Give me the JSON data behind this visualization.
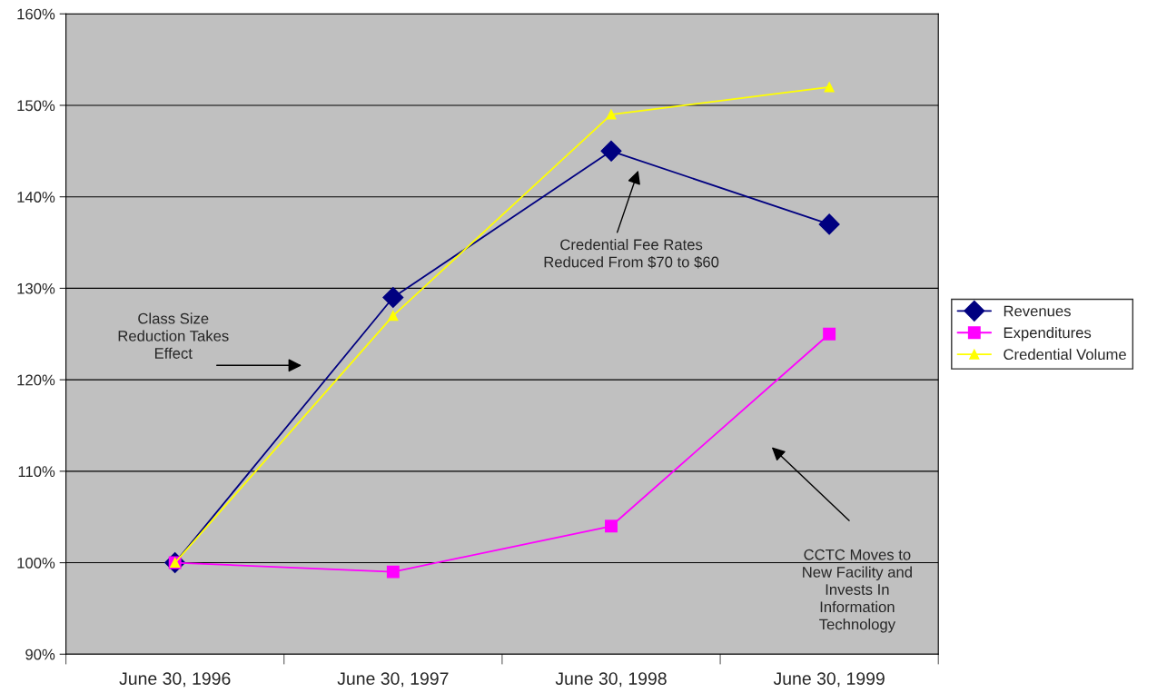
{
  "chart_data": {
    "type": "line",
    "categories": [
      "June 30, 1996",
      "June 30, 1997",
      "June 30, 1998",
      "June 30, 1999"
    ],
    "series": [
      {
        "name": "Revenues",
        "color": "#000080",
        "marker": "diamond",
        "values": [
          100,
          129,
          145,
          137
        ]
      },
      {
        "name": "Expenditures",
        "color": "#ff00ff",
        "marker": "square",
        "values": [
          100,
          99,
          104,
          125
        ]
      },
      {
        "name": "Credential Volume",
        "color": "#ffff00",
        "marker": "triangle",
        "values": [
          100,
          127,
          149,
          152
        ]
      }
    ],
    "ylim": [
      90,
      160
    ],
    "yticks": [
      {
        "value": 90,
        "label": "90%"
      },
      {
        "value": 100,
        "label": "100%"
      },
      {
        "value": 110,
        "label": "110%"
      },
      {
        "value": 120,
        "label": "120%"
      },
      {
        "value": 130,
        "label": "130%"
      },
      {
        "value": 140,
        "label": "140%"
      },
      {
        "value": 150,
        "label": "150%"
      },
      {
        "value": 160,
        "label": "160%"
      }
    ],
    "grid": "y",
    "legend": "right",
    "annotations": [
      "Class Size\nReduction Takes\nEffect",
      "Credential Fee Rates\nReduced From $70 to $60",
      "CCTC Moves to\nNew Facility and\nInvests In\nInformation\nTechnology"
    ]
  }
}
